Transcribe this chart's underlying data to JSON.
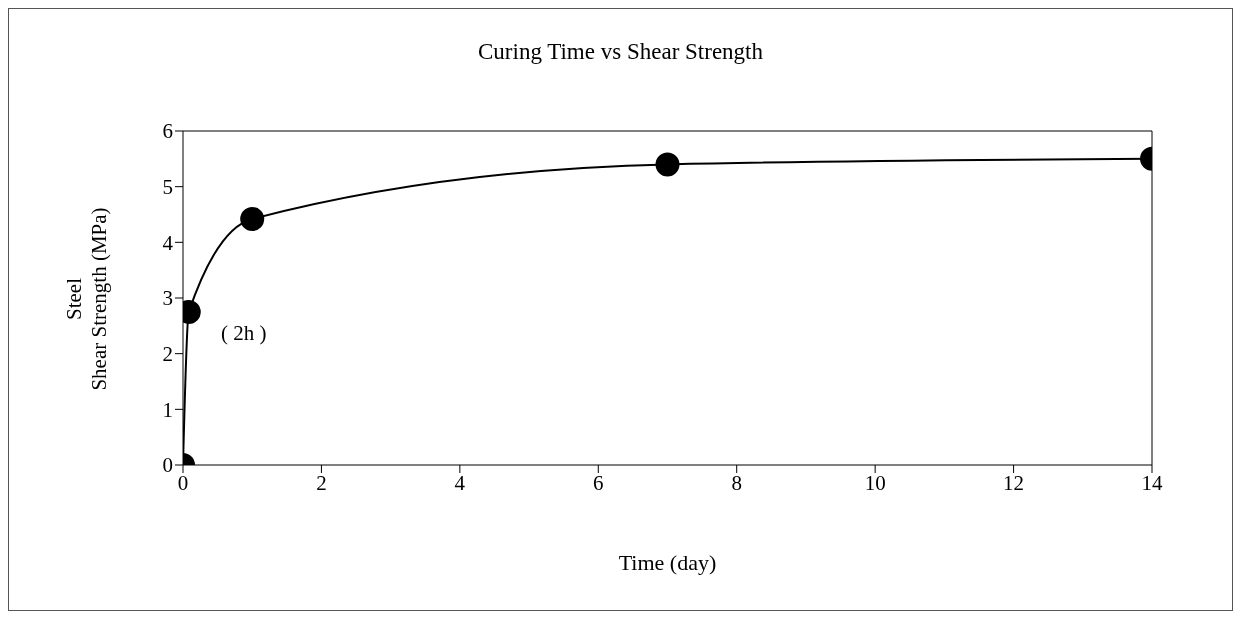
{
  "chart_data": {
    "type": "line",
    "title": "Curing Time vs Shear Strength",
    "xlabel": "Time (day)",
    "ylabel": "Steel\nShear Strength (MPa)",
    "x": [
      0,
      0.083,
      1,
      7,
      14
    ],
    "series": [
      {
        "color": "#000000",
        "values": [
          0,
          2.75,
          4.42,
          5.4,
          5.5
        ]
      }
    ],
    "xlim": [
      0,
      14
    ],
    "xticks": [
      0,
      2,
      4,
      6,
      8,
      10,
      12,
      14
    ],
    "ylim": [
      0,
      6
    ],
    "yticks": [
      0,
      1,
      2,
      3,
      4,
      5,
      6
    ],
    "marker": "circle",
    "line_style": "solid",
    "annotations": [
      {
        "text": "( 2h )",
        "x": 0.083,
        "y": 2.75
      }
    ]
  }
}
